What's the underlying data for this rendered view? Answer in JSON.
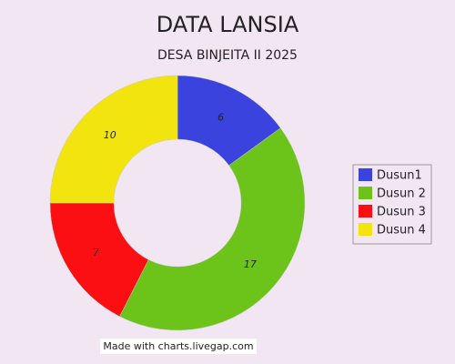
{
  "chart_data": {
    "type": "pie",
    "title": "DATA LANSIA",
    "subtitle": "DESA BINJEITA II 2025",
    "categories": [
      "Dusun1",
      "Dusun 2",
      "Dusun 3",
      "Dusun 4"
    ],
    "values": [
      6,
      17,
      7,
      10
    ],
    "colors": [
      "#3a43de",
      "#6cc31a",
      "#fb0f12",
      "#f2e40f"
    ],
    "legend": "right"
  },
  "footer": "Made with charts.livegap.com"
}
